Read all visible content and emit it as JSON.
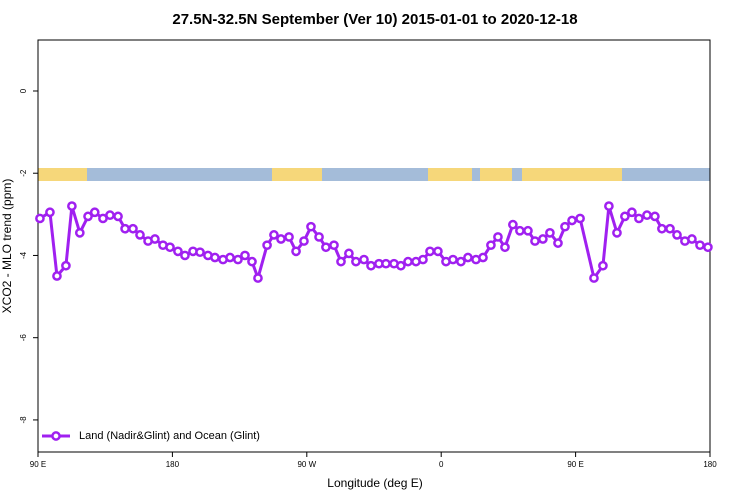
{
  "chart_data": {
    "type": "line",
    "title": "27.5N-32.5N September (Ver 10)   2015-01-01 to 2020-12-18",
    "xlabel": "Longitude (deg E)",
    "ylabel": "XCO2 - MLO trend (ppm)",
    "xlim": [
      90,
      540
    ],
    "ylim": [
      -8.78,
      1.24
    ],
    "xticks": [
      {
        "value": 90,
        "label": "90 E"
      },
      180,
      {
        "value": 270,
        "label": "90 W"
      },
      {
        "value": 360,
        "label": "0"
      },
      {
        "value": 450,
        "label": "90 E"
      },
      {
        "value": 540,
        "label": "180"
      }
    ],
    "yticks": [
      0,
      -2,
      -4,
      -6,
      -8
    ],
    "legend": "bottom-left",
    "x": [
      91.3,
      98,
      102.7,
      108.7,
      112.7,
      118,
      123.5,
      128,
      133.5,
      138.2,
      143.6,
      148.3,
      153.6,
      158.3,
      163.7,
      168.3,
      173.7,
      178.4,
      183.7,
      188.4,
      193.8,
      198.5,
      203.8,
      208.5,
      213.9,
      218.6,
      223.9,
      228.6,
      233.3,
      237.3,
      243.4,
      248,
      252.7,
      258.1,
      262.8,
      268.1,
      272.8,
      278.2,
      282.8,
      288.2,
      292.9,
      298.2,
      302.9,
      308.3,
      313,
      318.3,
      323,
      328.4,
      333,
      337.8,
      343.1,
      347.8,
      352.5,
      357.8,
      363.2,
      367.9,
      373.2,
      377.9,
      383.3,
      388,
      393.3,
      398,
      402.7,
      408,
      412.7,
      418.1,
      422.8,
      428.1,
      432.8,
      438.2,
      442.9,
      447.6,
      453,
      462.3,
      468.3,
      472.3,
      477.7,
      483,
      487.7,
      492.4,
      497.8,
      503.1,
      507.8,
      513.2,
      517.9,
      523.2,
      527.9,
      533.3,
      538.6
    ],
    "series": [
      {
        "name": "Land (Nadir&Glint) and Ocean (Glint)",
        "color": "#a020f0",
        "values": [
          -3.1,
          -2.95,
          -4.5,
          -4.25,
          -2.8,
          -3.45,
          -3.05,
          -2.95,
          -3.1,
          -3.02,
          -3.05,
          -3.35,
          -3.35,
          -3.5,
          -3.65,
          -3.6,
          -3.75,
          -3.8,
          -3.9,
          -4.0,
          -3.9,
          -3.92,
          -4.0,
          -4.05,
          -4.1,
          -4.05,
          -4.1,
          -4.0,
          -4.15,
          -4.55,
          -3.75,
          -3.5,
          -3.6,
          -3.55,
          -3.9,
          -3.65,
          -3.3,
          -3.55,
          -3.8,
          -3.75,
          -4.15,
          -3.95,
          -4.15,
          -4.1,
          -4.25,
          -4.2,
          -4.2,
          -4.2,
          -4.25,
          -4.15,
          -4.15,
          -4.1,
          -3.9,
          -3.9,
          -4.15,
          -4.1,
          -4.15,
          -4.05,
          -4.1,
          -4.05,
          -3.75,
          -3.55,
          -3.8,
          -3.25,
          -3.4,
          -3.4,
          -3.65,
          -3.6,
          -3.45,
          -3.7,
          -3.3,
          -3.15,
          -3.1,
          -4.55,
          -4.25,
          -2.8,
          -3.45,
          -3.05,
          -2.95,
          -3.1,
          -3.02,
          -3.05,
          -3.35,
          -3.35,
          -3.5,
          -3.65,
          -3.6,
          -3.75,
          -3.8
        ]
      }
    ]
  }
}
